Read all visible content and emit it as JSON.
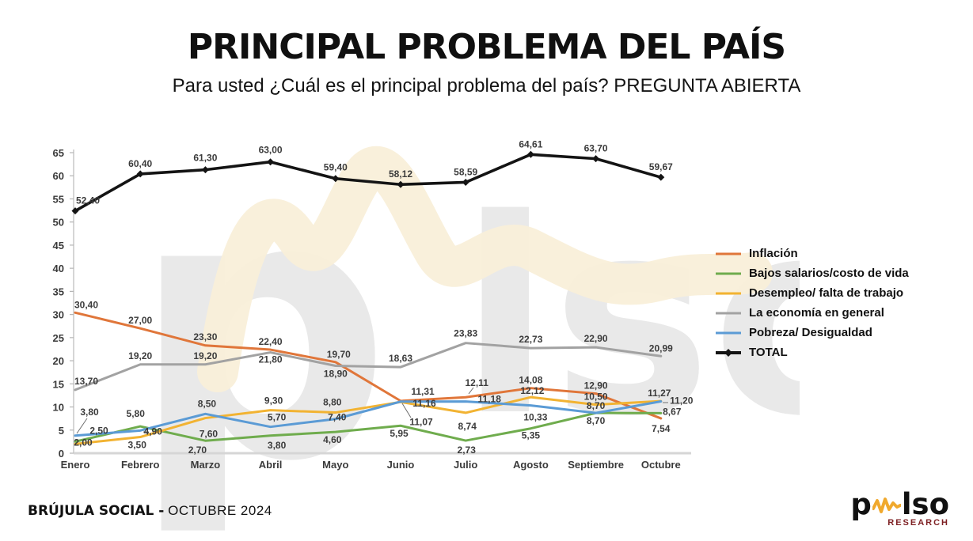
{
  "header": {
    "title": "PRINCIPAL PROBLEMA DEL PAÍS",
    "subtitle": "Para usted ¿Cuál es el principal problema del país? PREGUNTA ABIERTA"
  },
  "chart_data": {
    "type": "line",
    "title": "PRINCIPAL PROBLEMA DEL PAÍS",
    "subtitle": "Para usted ¿Cuál es el principal problema del país? PREGUNTA ABIERTA",
    "categories": [
      "Enero",
      "Febrero",
      "Marzo",
      "Abril",
      "Mayo",
      "Junio",
      "Julio",
      "Agosto",
      "Septiembre",
      "Octubre"
    ],
    "series": [
      {
        "name": "Inflación",
        "color": "#E0763A",
        "values": [
          30.4,
          27.0,
          23.3,
          22.4,
          19.7,
          11.31,
          12.11,
          14.08,
          12.9,
          7.54
        ]
      },
      {
        "name": "Bajos salarios/costo de vida",
        "color": "#6FAC4D",
        "values": [
          2.5,
          5.8,
          2.7,
          3.8,
          4.6,
          5.95,
          2.73,
          5.35,
          8.7,
          8.67
        ]
      },
      {
        "name": "Desempleo/ falta de trabajo",
        "color": "#F2B332",
        "values": [
          2.0,
          3.5,
          7.6,
          9.3,
          8.8,
          11.07,
          8.74,
          12.12,
          10.5,
          11.27
        ]
      },
      {
        "name": "La economía en general",
        "color": "#A2A2A2",
        "values": [
          13.7,
          19.2,
          19.2,
          21.8,
          18.9,
          18.63,
          23.83,
          22.73,
          22.9,
          20.99
        ]
      },
      {
        "name": "Pobreza/ Desigualdad",
        "color": "#5B9BD5",
        "values": [
          3.8,
          4.9,
          8.5,
          5.7,
          7.4,
          11.16,
          11.18,
          10.33,
          8.7,
          11.2
        ]
      },
      {
        "name": "TOTAL",
        "color": "#141414",
        "marker": "diamond",
        "values": [
          52.4,
          60.4,
          61.3,
          63.0,
          59.4,
          58.12,
          58.59,
          64.61,
          63.7,
          59.67
        ]
      }
    ],
    "ylim": [
      0,
      65
    ],
    "ytick_step": 5,
    "decimal_separator": ",",
    "data_labels": true,
    "grid": false,
    "legend_position": "right"
  },
  "watermark": {
    "part1": "p",
    "part2": "lso"
  },
  "footer": {
    "bold": "BRÚJULA SOCIAL -",
    "regular": "OCTUBRE 2024"
  },
  "logo": {
    "part1": "p",
    "part2": "lso",
    "sub": "RESEARCH"
  }
}
